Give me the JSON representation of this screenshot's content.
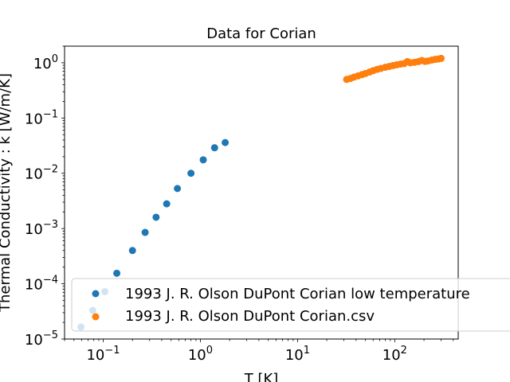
{
  "chart_data": {
    "type": "scatter",
    "title": "Data for Corian",
    "xlabel": "T [K]",
    "ylabel": "Thermal Conductivity : k [W/m/K]",
    "xscale": "log",
    "yscale": "log",
    "xlim": [
      0.04,
      450
    ],
    "ylim": [
      1e-05,
      2
    ],
    "x_ticks": [
      {
        "base": "10",
        "exp": "−1",
        "value": 0.1
      },
      {
        "base": "10",
        "exp": "0",
        "value": 1
      },
      {
        "base": "10",
        "exp": "1",
        "value": 10
      },
      {
        "base": "10",
        "exp": "2",
        "value": 100
      }
    ],
    "y_ticks": [
      {
        "base": "10",
        "exp": "−5",
        "value": 1e-05
      },
      {
        "base": "10",
        "exp": "−4",
        "value": 0.0001
      },
      {
        "base": "10",
        "exp": "−3",
        "value": 0.001
      },
      {
        "base": "10",
        "exp": "−2",
        "value": 0.01
      },
      {
        "base": "10",
        "exp": "−1",
        "value": 0.1
      },
      {
        "base": "10",
        "exp": "0",
        "value": 1
      }
    ],
    "grid": false,
    "legend_position": "lower-right",
    "series": [
      {
        "name": "1993 J. R. Olson DuPont Corian low temperature",
        "color": "#1f77b4",
        "points": [
          {
            "x": 0.059,
            "y": 1.65e-05
          },
          {
            "x": 0.078,
            "y": 3.3e-05
          },
          {
            "x": 0.104,
            "y": 7.2e-05
          },
          {
            "x": 0.138,
            "y": 0.000155
          },
          {
            "x": 0.2,
            "y": 0.0004
          },
          {
            "x": 0.27,
            "y": 0.00085
          },
          {
            "x": 0.35,
            "y": 0.0016
          },
          {
            "x": 0.45,
            "y": 0.0028
          },
          {
            "x": 0.58,
            "y": 0.0053
          },
          {
            "x": 0.8,
            "y": 0.01
          },
          {
            "x": 1.07,
            "y": 0.0175
          },
          {
            "x": 1.4,
            "y": 0.029
          },
          {
            "x": 1.8,
            "y": 0.036
          }
        ]
      },
      {
        "name": "1993 J. R. Olson DuPont Corian.csv",
        "color": "#ff7f0e",
        "points": [
          {
            "x": 32,
            "y": 0.5
          },
          {
            "x": 35,
            "y": 0.52
          },
          {
            "x": 38,
            "y": 0.55
          },
          {
            "x": 42,
            "y": 0.58
          },
          {
            "x": 46,
            "y": 0.61
          },
          {
            "x": 50,
            "y": 0.64
          },
          {
            "x": 55,
            "y": 0.68
          },
          {
            "x": 60,
            "y": 0.72
          },
          {
            "x": 66,
            "y": 0.76
          },
          {
            "x": 72,
            "y": 0.79
          },
          {
            "x": 80,
            "y": 0.83
          },
          {
            "x": 88,
            "y": 0.86
          },
          {
            "x": 96,
            "y": 0.89
          },
          {
            "x": 105,
            "y": 0.92
          },
          {
            "x": 115,
            "y": 0.95
          },
          {
            "x": 125,
            "y": 0.97
          },
          {
            "x": 135,
            "y": 1.05
          },
          {
            "x": 145,
            "y": 1.0
          },
          {
            "x": 160,
            "y": 1.02
          },
          {
            "x": 175,
            "y": 1.05
          },
          {
            "x": 190,
            "y": 1.1
          },
          {
            "x": 205,
            "y": 1.06
          },
          {
            "x": 220,
            "y": 1.08
          },
          {
            "x": 240,
            "y": 1.12
          },
          {
            "x": 260,
            "y": 1.15
          },
          {
            "x": 280,
            "y": 1.17
          },
          {
            "x": 300,
            "y": 1.2
          }
        ]
      }
    ]
  }
}
